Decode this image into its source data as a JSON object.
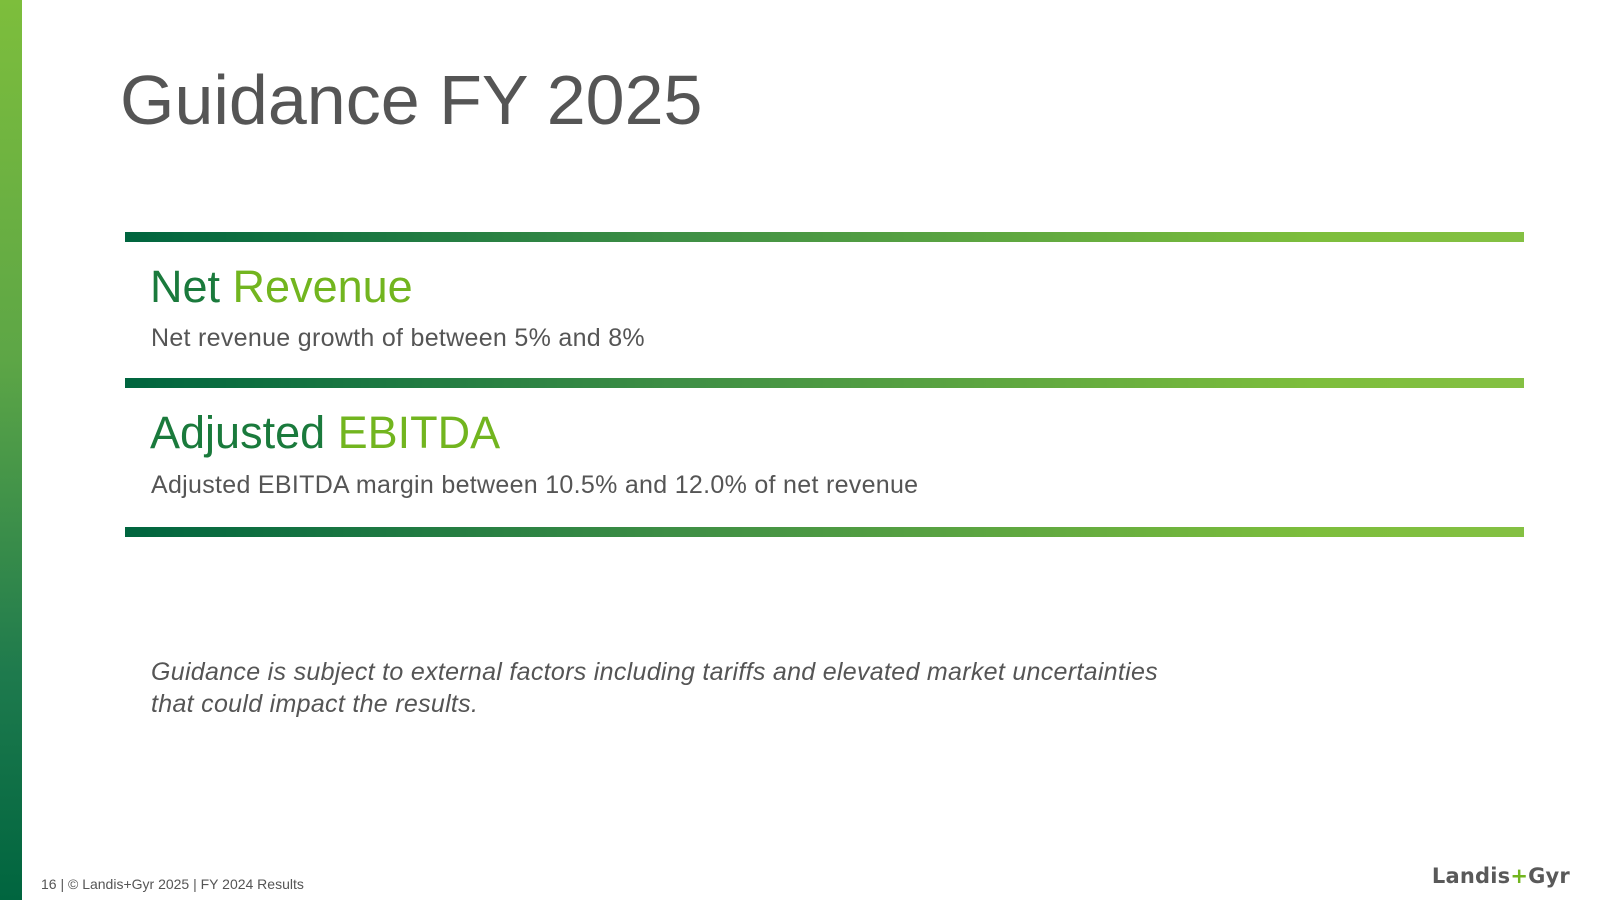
{
  "slide": {
    "title": "Guidance FY 2025"
  },
  "sections": [
    {
      "heading_dark": "Net",
      "heading_light": "Revenue",
      "text": "Net revenue growth of between 5% and 8%"
    },
    {
      "heading_dark": "Adjusted",
      "heading_light": "EBITDA",
      "text": "Adjusted EBITDA margin between 10.5% and 12.0% of net revenue"
    }
  ],
  "disclaimer": {
    "line1": "Guidance is subject to external factors including tariffs and elevated market uncertainties",
    "line2": "that could impact the results."
  },
  "footer": {
    "text": "16 | © Landis+Gyr 2025 | FY 2024 Results"
  },
  "logo": {
    "part1": "Landis",
    "plus": "+",
    "part2": "Gyr"
  },
  "colors": {
    "heading_dark": "#1a7a3c",
    "heading_light": "#72b51f",
    "body_text": "#555555",
    "gradient_start": "#00653f",
    "gradient_end": "#84c043"
  }
}
